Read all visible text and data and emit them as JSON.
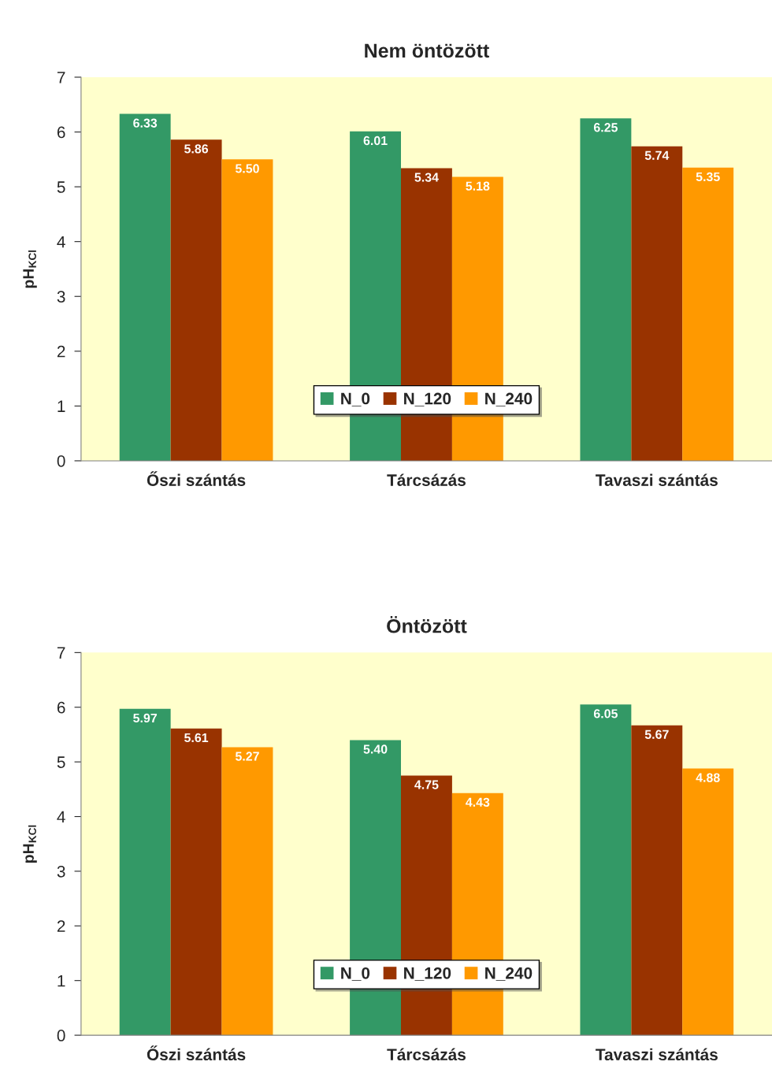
{
  "chart_data": [
    {
      "type": "bar",
      "title": "Nem öntözött",
      "ylabel": "pH$_{KCl}$",
      "categories": [
        "Őszi szántás",
        "Tárcsázás",
        "Tavaszi szántás"
      ],
      "series": [
        {
          "name": "N_0",
          "color": "#339966",
          "values": [
            6.33,
            6.01,
            6.25
          ],
          "value_labels": [
            "6.33",
            "6.01",
            "6.25"
          ]
        },
        {
          "name": "N_120",
          "color": "#993300",
          "values": [
            5.86,
            5.34,
            5.74
          ],
          "value_labels": [
            "5.86",
            "5.34",
            "5.74"
          ]
        },
        {
          "name": "N_240",
          "color": "#ff9900",
          "values": [
            5.5,
            5.18,
            5.35
          ],
          "value_labels": [
            "5.50",
            "5.18",
            "5.35"
          ]
        }
      ],
      "ylim": [
        0,
        7
      ],
      "yticks": [
        0,
        1,
        2,
        3,
        4,
        5,
        6,
        7
      ],
      "legend": "bottom",
      "grid": false
    },
    {
      "type": "bar",
      "title": "Öntözött",
      "ylabel": "pH$_{KCl}$",
      "categories": [
        "Őszi szántás",
        "Tárcsázás",
        "Tavaszi szántás"
      ],
      "series": [
        {
          "name": "N_0",
          "color": "#339966",
          "values": [
            5.97,
            5.4,
            6.05
          ],
          "value_labels": [
            "5.97",
            "5.40",
            "6.05"
          ]
        },
        {
          "name": "N_120",
          "color": "#993300",
          "values": [
            5.61,
            4.75,
            5.67
          ],
          "value_labels": [
            "5.61",
            "4.75",
            "5.67"
          ]
        },
        {
          "name": "N_240",
          "color": "#ff9900",
          "values": [
            5.27,
            4.43,
            4.88
          ],
          "value_labels": [
            "5.27",
            "4.43",
            "4.88"
          ]
        }
      ],
      "ylim": [
        0,
        7
      ],
      "yticks": [
        0,
        1,
        2,
        3,
        4,
        5,
        6,
        7
      ],
      "legend": "bottom",
      "grid": false
    }
  ]
}
